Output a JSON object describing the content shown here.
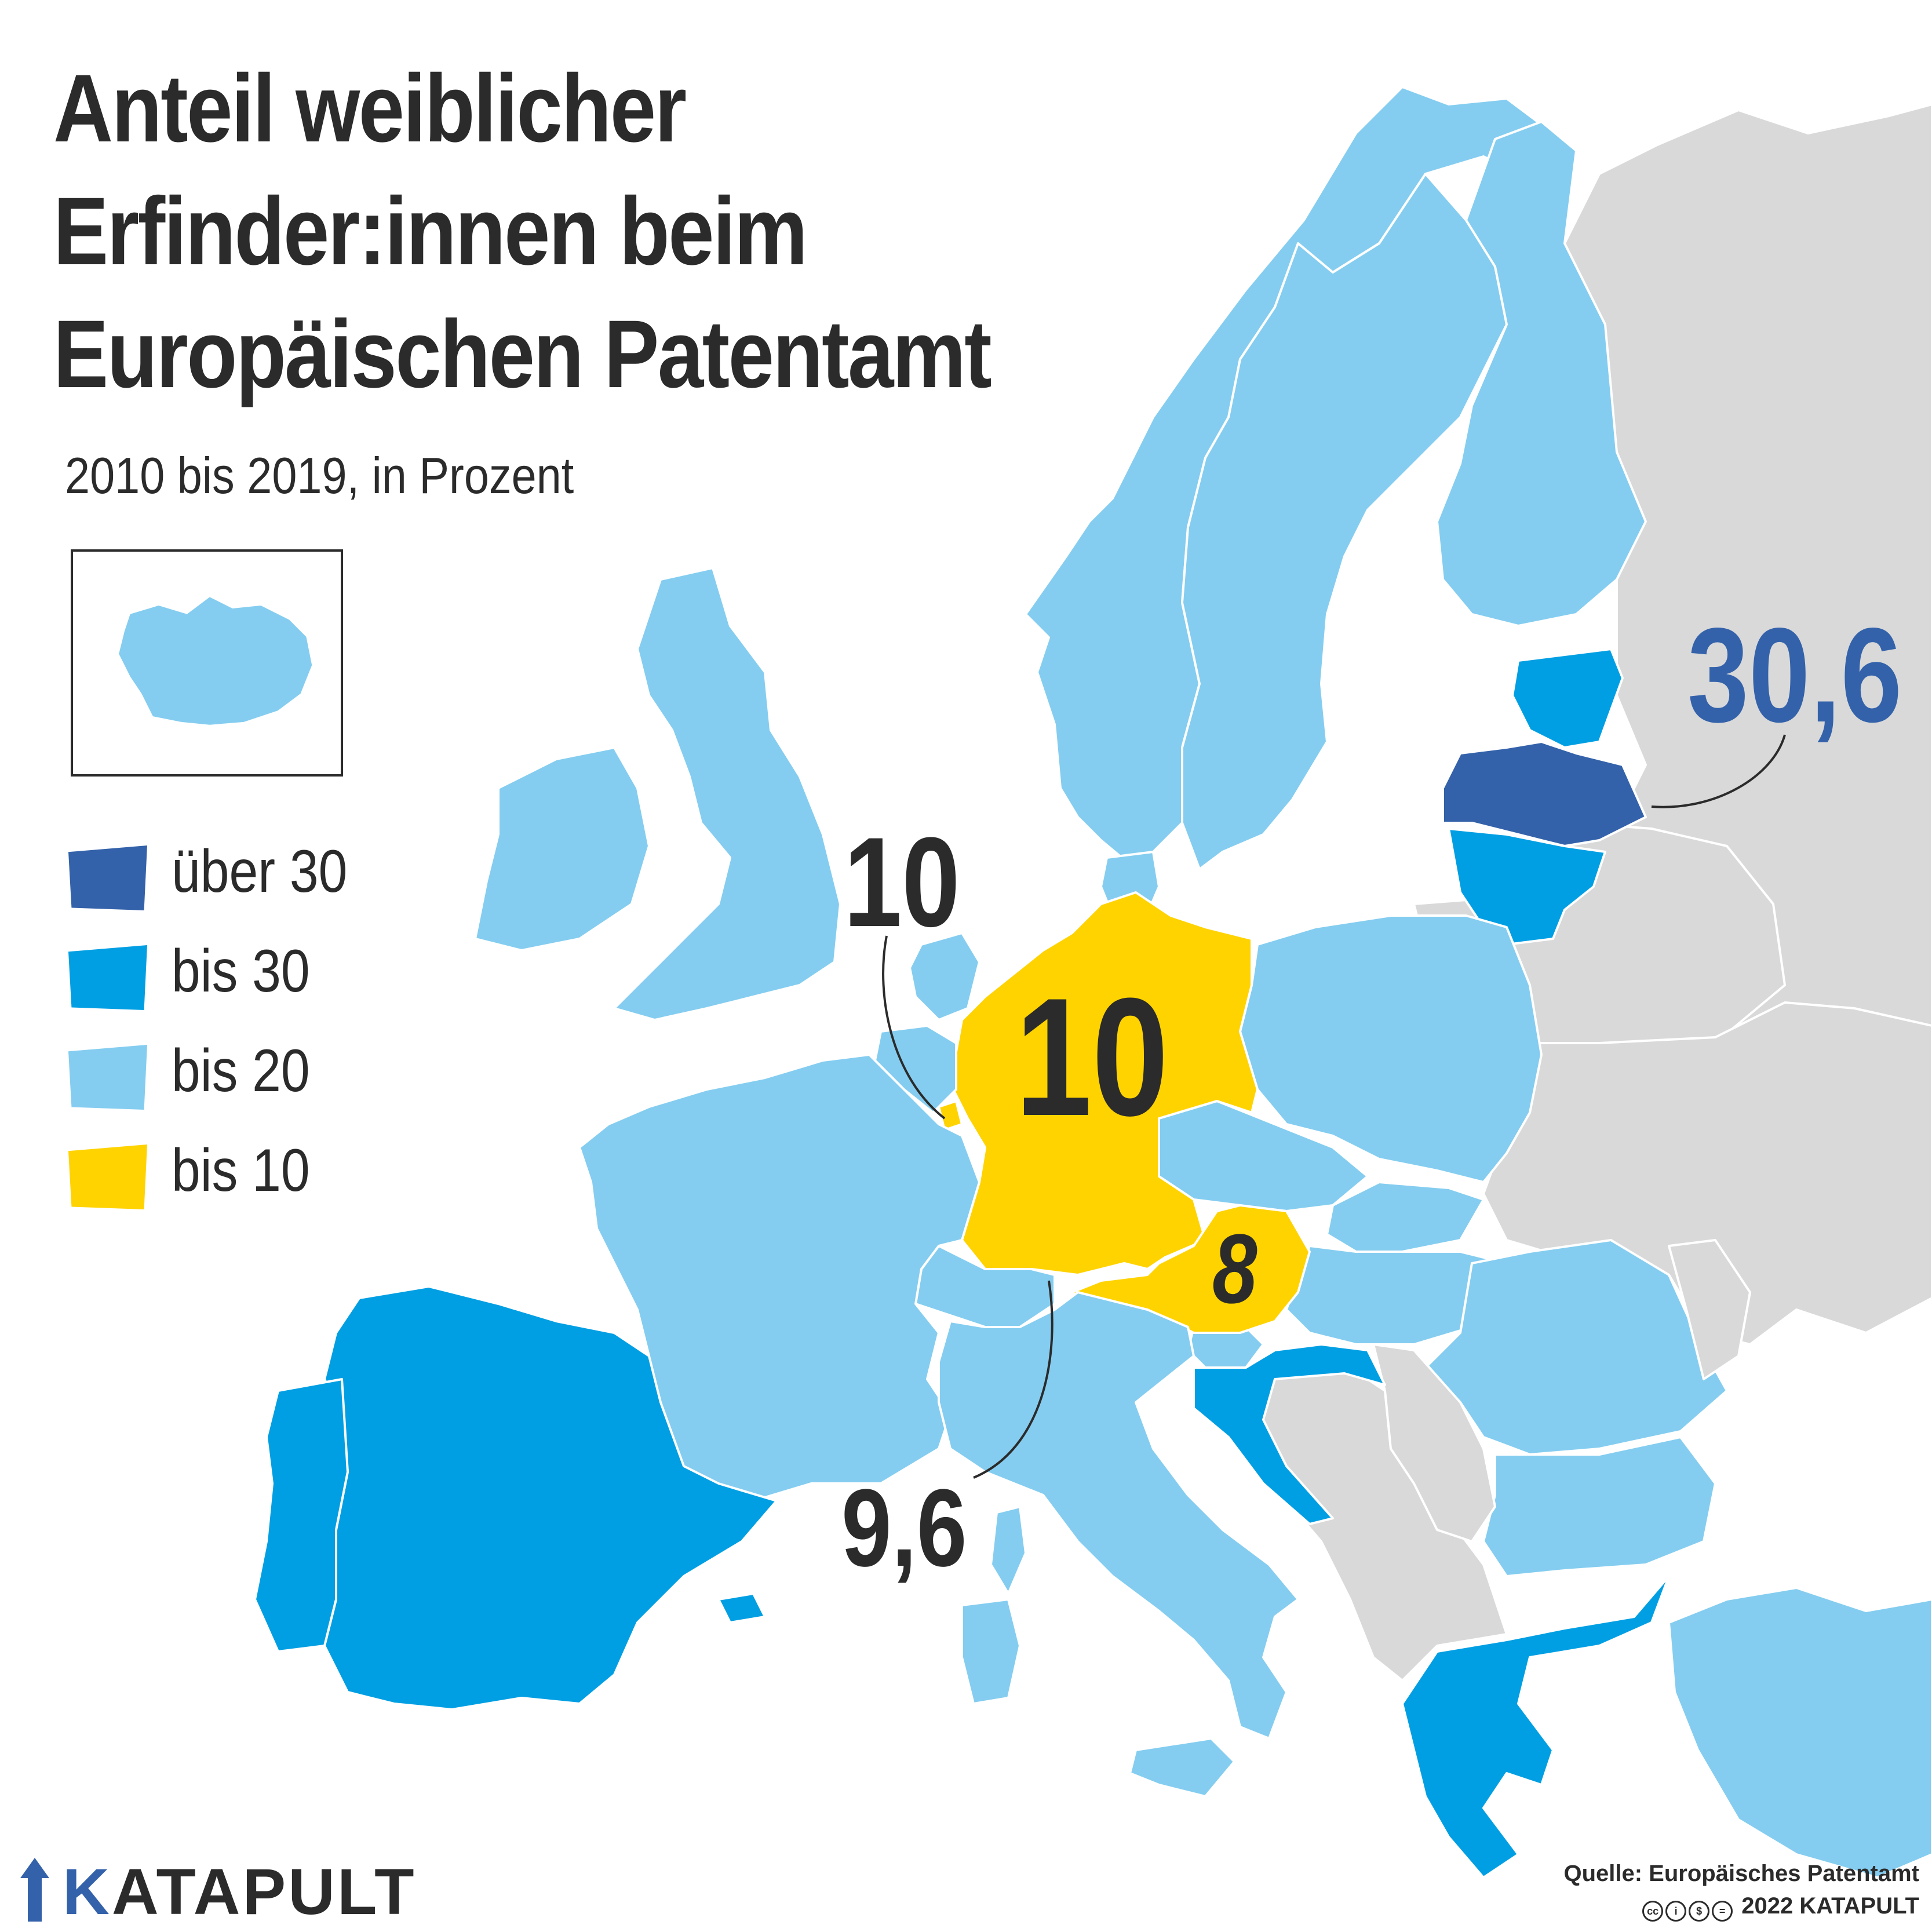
{
  "title": {
    "line1": "Anteil weiblicher",
    "line2": "Erfinder:innen beim",
    "line3": "Europäischen Patentamt"
  },
  "subtitle": "2010 bis 2019, in Prozent",
  "legend": [
    {
      "label": "über 30",
      "color": "#3462aa"
    },
    {
      "label": "bis 30",
      "color": "#009fe3"
    },
    {
      "label": "bis 20",
      "color": "#84cdf0"
    },
    {
      "label": "bis 10",
      "color": "#ffd300"
    }
  ],
  "colors": {
    "no_data": "#d9d9d9",
    "border": "#ffffff",
    "text": "#2b2b2b"
  },
  "map_values": {
    "benelux": "10",
    "germany": "10",
    "austria": "8",
    "switzerland": "9,6",
    "latvia": "30,6"
  },
  "brand": {
    "k": "K",
    "rest": "ATAPULT"
  },
  "source": "Quelle: Europäisches Patentamt",
  "copyright": "2022 KATAPULT"
}
